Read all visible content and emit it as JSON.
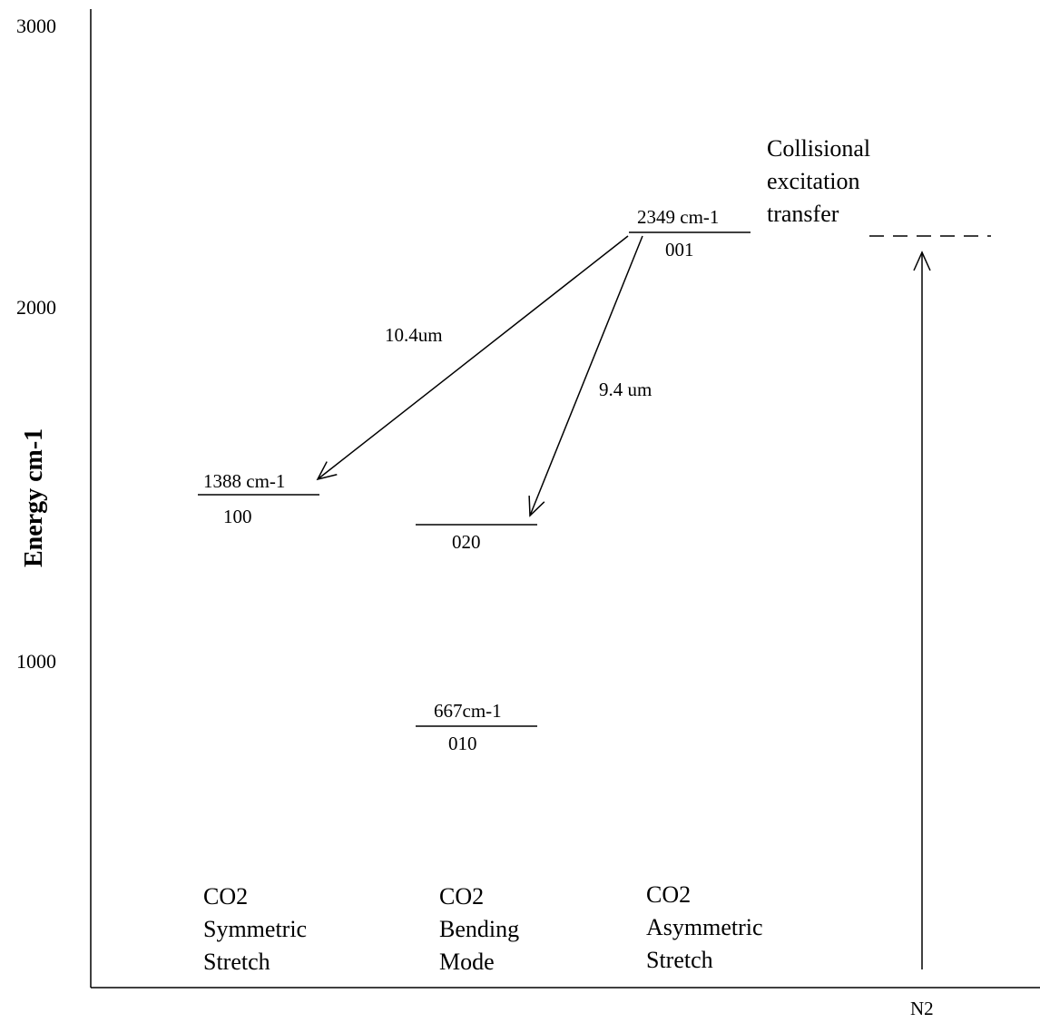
{
  "axis": {
    "title": "Energy cm-1",
    "ticks": [
      "3000",
      "2000",
      "1000"
    ],
    "x_category": "N2"
  },
  "levels": {
    "l_100": {
      "energy_label": "1388 cm-1",
      "state": "100"
    },
    "l_020": {
      "state": "020"
    },
    "l_010": {
      "energy_label": "667cm-1",
      "state": "010"
    },
    "l_001": {
      "energy_label": "2349 cm-1",
      "state": "001"
    }
  },
  "transitions": {
    "t_10um": "10.4um",
    "t_9um": "9.4 um"
  },
  "collision": {
    "line1": "Collisional",
    "line2": "excitation",
    "line3": "transfer"
  },
  "modes": {
    "symmetric": {
      "line1": "CO2",
      "line2": "Symmetric",
      "line3": "Stretch"
    },
    "bending": {
      "line1": "CO2",
      "line2": "Bending",
      "line3": "Mode"
    },
    "asymmetric": {
      "line1": "CO2",
      "line2": "Asymmetric",
      "line3": "Stretch"
    }
  }
}
